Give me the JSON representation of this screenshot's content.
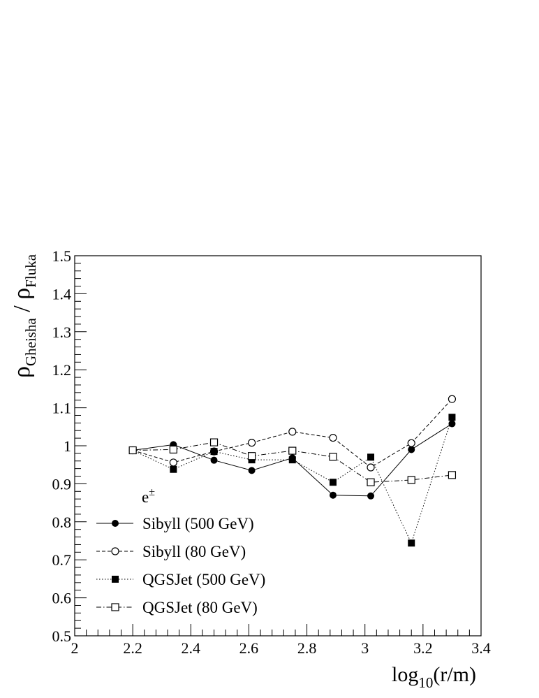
{
  "chart_data": {
    "type": "line",
    "xlabel": {
      "main": "log",
      "sub": "10",
      "tail": "(r/m)"
    },
    "ylabel": {
      "rho1": "ρ",
      "sub1": "Gheisha",
      "slash": " / ",
      "rho2": "ρ",
      "sub2": "Fluka"
    },
    "annotation": {
      "base": "e",
      "sup": "±"
    },
    "xlim": [
      2,
      3.4
    ],
    "ylim": [
      0.5,
      1.5
    ],
    "xticks": [
      "2",
      "2.2",
      "2.4",
      "2.6",
      "2.8",
      "3",
      "3.2",
      "3.4"
    ],
    "yticks": [
      "0.5",
      "0.6",
      "0.7",
      "0.8",
      "0.9",
      "1",
      "1.1",
      "1.2",
      "1.3",
      "1.4",
      "1.5"
    ],
    "x": [
      2.2,
      2.34,
      2.48,
      2.61,
      2.75,
      2.89,
      3.02,
      3.16,
      3.3
    ],
    "series": [
      {
        "name": "Sibyll (500 GeV)",
        "marker": "filled-circle",
        "line": "solid",
        "values": [
          0.988,
          1.003,
          0.962,
          0.935,
          0.968,
          0.87,
          0.868,
          0.99,
          1.058
        ]
      },
      {
        "name": "Sibyll (80 GeV)",
        "marker": "open-circle",
        "line": "dashed",
        "values": [
          0.988,
          0.956,
          0.985,
          1.008,
          1.037,
          1.021,
          0.943,
          1.007,
          1.123
        ]
      },
      {
        "name": "QGSJet (500 GeV)",
        "marker": "filled-square",
        "line": "dotted",
        "values": [
          0.988,
          0.938,
          0.985,
          0.963,
          0.963,
          0.904,
          0.97,
          0.744,
          1.075
        ]
      },
      {
        "name": "QGSJet (80 GeV)",
        "marker": "open-square",
        "line": "dashdot",
        "values": [
          0.988,
          0.99,
          1.009,
          0.973,
          0.987,
          0.971,
          0.904,
          0.91,
          0.923
        ]
      }
    ],
    "grid": false,
    "legend_position": "bottom-left"
  }
}
